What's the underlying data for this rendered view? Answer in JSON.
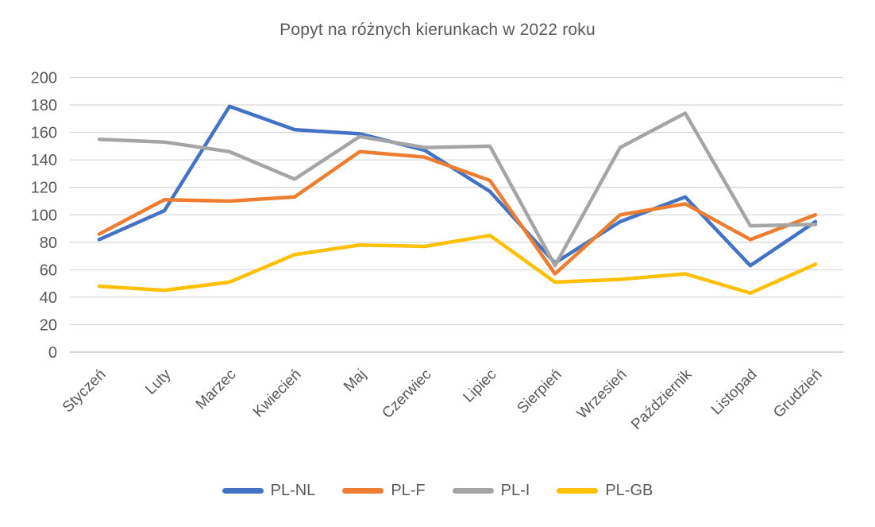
{
  "title": "Popyt na różnych kierunkach w 2022 roku",
  "colors": {
    "text": "#595959",
    "gridline": "#D9D9D9",
    "axis": "#BFBFBF",
    "background": "#FFFFFF"
  },
  "chart_data": {
    "type": "line",
    "title": "Popyt na różnych kierunkach w 2022 roku",
    "categories": [
      "Styczeń",
      "Luty",
      "Marzec",
      "Kwiecień",
      "Maj",
      "Czerwiec",
      "Lipiec",
      "Sierpień",
      "Wrzesień",
      "Październik",
      "Listopad",
      "Grudzień"
    ],
    "series": [
      {
        "name": "PL-NL",
        "color": "#4472C4",
        "values": [
          82,
          103,
          179,
          162,
          159,
          147,
          117,
          65,
          95,
          113,
          63,
          95
        ]
      },
      {
        "name": "PL-F",
        "color": "#ED7D31",
        "values": [
          86,
          111,
          110,
          113,
          146,
          142,
          125,
          57,
          100,
          108,
          82,
          100
        ]
      },
      {
        "name": "PL-I",
        "color": "#A5A5A5",
        "values": [
          155,
          153,
          146,
          126,
          157,
          149,
          150,
          63,
          149,
          174,
          92,
          93
        ]
      },
      {
        "name": "PL-GB",
        "color": "#FFC000",
        "values": [
          48,
          45,
          51,
          71,
          78,
          77,
          85,
          51,
          53,
          57,
          43,
          64
        ]
      }
    ],
    "ylim": [
      0,
      200
    ],
    "ytick_step": 20,
    "grid": true,
    "legend_position": "bottom",
    "xlabel": "",
    "ylabel": ""
  }
}
